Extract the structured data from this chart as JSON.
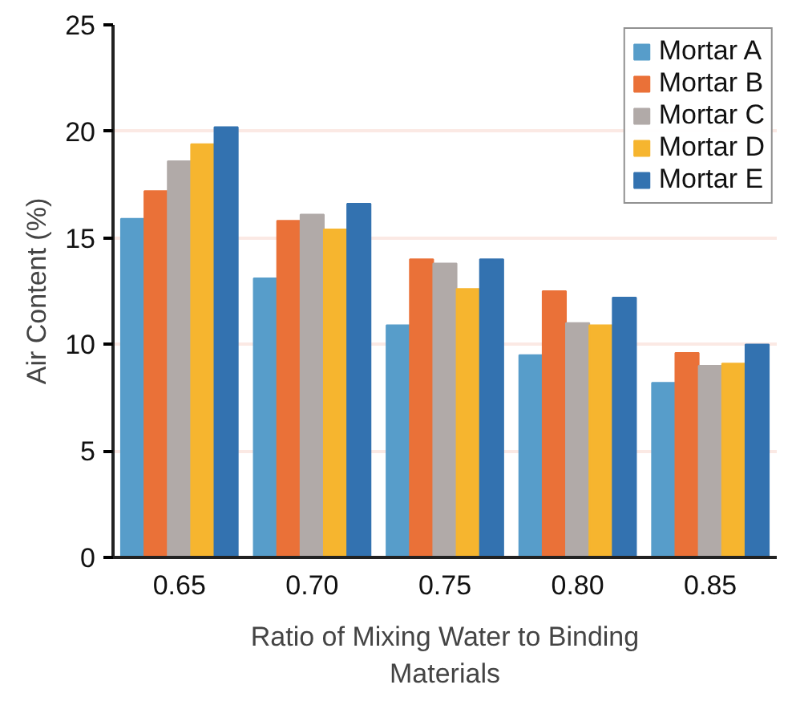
{
  "chart_data": {
    "type": "bar",
    "xlabel": "Ratio of Mixing Water to Binding Materials",
    "ylabel": "Air Content (%)",
    "categories": [
      "0.65",
      "0.70",
      "0.75",
      "0.80",
      "0.85"
    ],
    "series": [
      {
        "name": "Mortar A",
        "color": "#579dca",
        "values": [
          15.9,
          13.1,
          10.9,
          9.5,
          8.2
        ]
      },
      {
        "name": "Mortar B",
        "color": "#ea7138",
        "values": [
          17.2,
          15.8,
          14.0,
          12.5,
          9.6
        ]
      },
      {
        "name": "Mortar C",
        "color": "#b1aaa8",
        "values": [
          18.6,
          16.1,
          13.8,
          11.0,
          9.0
        ]
      },
      {
        "name": "Mortar D",
        "color": "#f6b52f",
        "values": [
          19.4,
          15.4,
          12.6,
          10.9,
          9.1
        ]
      },
      {
        "name": "Mortar E",
        "color": "#3372b0",
        "values": [
          20.2,
          16.6,
          14.0,
          12.2,
          10.0
        ]
      }
    ],
    "ylim": [
      0,
      25
    ],
    "yticks": [
      0,
      5,
      10,
      15,
      20,
      25
    ],
    "grid": "y",
    "legend": "top right"
  }
}
